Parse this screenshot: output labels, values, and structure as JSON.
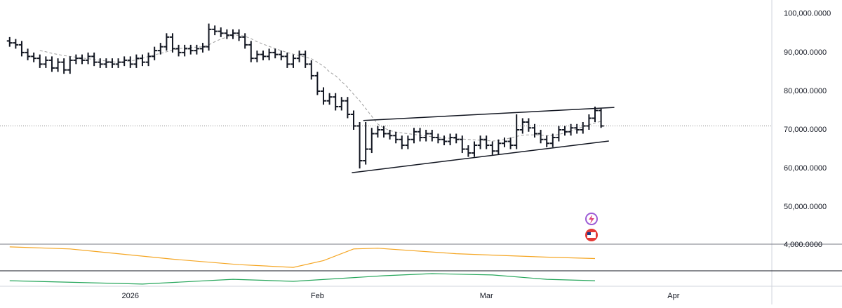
{
  "chart_data": {
    "type": "ohlc",
    "color": "#131722",
    "xlim": [
      -1.6,
      126.3
    ],
    "xticks": [
      {
        "value": 20,
        "label": "2026"
      },
      {
        "value": 51,
        "label": "Feb"
      },
      {
        "value": 79,
        "label": "Mar"
      },
      {
        "value": 110,
        "label": "Apr"
      }
    ],
    "ylim": [
      40400,
      103600
    ],
    "yticks": [
      {
        "value": 100000,
        "label": "100,000.0000"
      },
      {
        "value": 90000,
        "label": "90,000.0000"
      },
      {
        "value": 80000,
        "label": "80,000.0000"
      },
      {
        "value": 70000,
        "label": "70,000.0000"
      },
      {
        "value": 60000,
        "label": "60,000.0000"
      },
      {
        "value": 50000,
        "label": "50,000.0000"
      }
    ],
    "series": [
      {
        "open": [
          93000,
          92500,
          92000,
          90000,
          89000,
          88500,
          87000,
          88000,
          86000,
          87500,
          85500,
          88000,
          88500,
          88000,
          89000,
          87500,
          87000,
          87500,
          87000,
          87500,
          88000,
          87000,
          88500,
          87500,
          89000,
          90500,
          91500,
          94000,
          91000,
          90000,
          91000,
          90500,
          91000,
          91500,
          96000,
          95500,
          95000,
          94500,
          95000,
          94000,
          92000,
          88500,
          89500,
          89000,
          90000,
          89500,
          89000,
          87000,
          88500,
          89500,
          87000,
          84000,
          80000,
          77500,
          78500,
          76000,
          77500,
          74000,
          71000,
          62000,
          65000,
          69000,
          70000,
          69000,
          68500,
          67500,
          66000,
          67500,
          69500,
          68000,
          69000,
          68000,
          67500,
          67000,
          68000,
          67500,
          65000,
          64000,
          66000,
          67500,
          66000,
          64500,
          66500,
          67000,
          66000,
          70000,
          72000,
          70500,
          69000,
          67500,
          66500,
          68000,
          70000,
          69500,
          70500,
          70000,
          71000,
          73000,
          75000
        ],
        "high": [
          94000,
          93500,
          93000,
          91000,
          90000,
          89500,
          89000,
          89000,
          88500,
          88500,
          89000,
          89500,
          89500,
          90000,
          90000,
          88500,
          88500,
          88500,
          88500,
          89000,
          89000,
          89500,
          89500,
          90000,
          91500,
          92500,
          95000,
          95000,
          92000,
          92000,
          92000,
          92000,
          92500,
          97500,
          97000,
          96500,
          96000,
          96000,
          96000,
          95000,
          93000,
          90500,
          90500,
          91000,
          91000,
          90500,
          90000,
          89500,
          90500,
          90500,
          88000,
          85000,
          81000,
          79500,
          79500,
          78500,
          78500,
          75000,
          72000,
          72000,
          70500,
          71000,
          71000,
          70000,
          69500,
          68500,
          68500,
          70500,
          70500,
          70000,
          70000,
          69000,
          68500,
          69000,
          69000,
          68500,
          66000,
          67000,
          68500,
          68500,
          67000,
          67500,
          68000,
          68000,
          74000,
          73000,
          73000,
          71500,
          70000,
          68500,
          69000,
          71000,
          71000,
          71500,
          71500,
          72000,
          74000,
          76000,
          75500
        ],
        "low": [
          91500,
          91000,
          89000,
          88000,
          87500,
          86000,
          86000,
          85000,
          85000,
          84500,
          84500,
          87000,
          87000,
          87000,
          86500,
          86000,
          86000,
          86000,
          86000,
          86500,
          86000,
          86000,
          86500,
          86500,
          88000,
          89500,
          90500,
          90000,
          89000,
          89000,
          89500,
          89500,
          90000,
          90500,
          94500,
          94000,
          93500,
          93500,
          93000,
          91000,
          87500,
          87500,
          88000,
          88000,
          88500,
          88000,
          86000,
          86000,
          87500,
          86000,
          83000,
          79000,
          76500,
          76500,
          75000,
          75000,
          73000,
          70000,
          60000,
          61000,
          64000,
          68000,
          68000,
          67500,
          66500,
          65000,
          65000,
          66500,
          67000,
          67000,
          67000,
          66500,
          66000,
          66000,
          66500,
          64000,
          63000,
          63000,
          65000,
          65000,
          63500,
          63500,
          65500,
          65000,
          65000,
          69000,
          69500,
          68000,
          66500,
          65500,
          65500,
          67000,
          68500,
          68500,
          69000,
          69000,
          70000,
          72000,
          70500
        ],
        "close": [
          92500,
          92000,
          90000,
          89000,
          88500,
          87000,
          88000,
          86000,
          87500,
          85500,
          88000,
          88500,
          88000,
          89000,
          87500,
          87000,
          87500,
          87000,
          87500,
          88000,
          87000,
          88500,
          87500,
          89000,
          90500,
          91500,
          94000,
          91000,
          90000,
          91000,
          90500,
          91000,
          91500,
          96000,
          95500,
          95000,
          94500,
          95000,
          94000,
          92000,
          88500,
          89500,
          89000,
          90000,
          89500,
          89000,
          87000,
          88500,
          89500,
          87000,
          84000,
          80000,
          77500,
          78500,
          76000,
          77500,
          74000,
          71000,
          62000,
          65000,
          69000,
          70000,
          69000,
          68500,
          67500,
          66000,
          67500,
          69500,
          68000,
          69000,
          68000,
          67500,
          67000,
          68000,
          67500,
          65000,
          64000,
          66000,
          67500,
          66000,
          64500,
          66500,
          67000,
          66000,
          70000,
          72000,
          70500,
          69000,
          67500,
          66500,
          68000,
          70000,
          69500,
          70500,
          70000,
          71000,
          73000,
          75000,
          71000
        ]
      }
    ],
    "moving_average": {
      "color": "#9e9e9e",
      "values": [
        null,
        null,
        null,
        null,
        null,
        90500,
        90200,
        89800,
        89500,
        89200,
        89000,
        88800,
        88600,
        88400,
        88200,
        88000,
        87800,
        87600,
        87500,
        87600,
        87800,
        88100,
        88500,
        89000,
        89400,
        89800,
        90200,
        90600,
        91000,
        91200,
        91300,
        91400,
        91500,
        92000,
        92800,
        93500,
        94000,
        94300,
        94500,
        94200,
        93600,
        92800,
        92200,
        91600,
        91000,
        90500,
        90000,
        89600,
        89200,
        88800,
        88400,
        87500,
        86500,
        85000,
        84000,
        82500,
        81000,
        79200,
        77500,
        75500,
        73500,
        71500,
        70500,
        69800,
        69400,
        69200,
        69000,
        68800,
        68600,
        68400,
        68200,
        68000,
        67900,
        67800,
        67700,
        67600,
        67500,
        67400,
        67300,
        67200,
        67100,
        67200,
        67500,
        67900,
        68300,
        68600,
        68700,
        68700,
        68600,
        68500,
        68500,
        68800,
        69200,
        69700,
        70200,
        70800,
        71300,
        71800,
        72200
      ]
    },
    "trendlines": [
      {
        "x": [
          58.6,
          100.2
        ],
        "values": [
          72400,
          75800
        ]
      },
      {
        "x": [
          56.7,
          99.3
        ],
        "values": [
          58900,
          67100
        ]
      }
    ],
    "indicators": [
      {
        "color": "#f5a623",
        "x": [
          0,
          10,
          27,
          38,
          47,
          52,
          57,
          61,
          74,
          80,
          89,
          97
        ],
        "values": [
          3925,
          3850,
          3475,
          3275,
          3175,
          3425,
          3850,
          3875,
          3675,
          3625,
          3550,
          3500
        ],
        "ylim": [
          3050,
          4025
        ],
        "yticks": [
          {
            "value": 4000,
            "label": "4,000.0000"
          }
        ]
      },
      {
        "color": "#26a65b",
        "x": [
          0,
          22,
          37,
          47,
          62,
          70,
          80,
          89,
          97
        ],
        "values": [
          36,
          14,
          45,
          32,
          68,
          82,
          73,
          45,
          36
        ],
        "ylim": [
          0,
          100
        ]
      }
    ]
  }
}
